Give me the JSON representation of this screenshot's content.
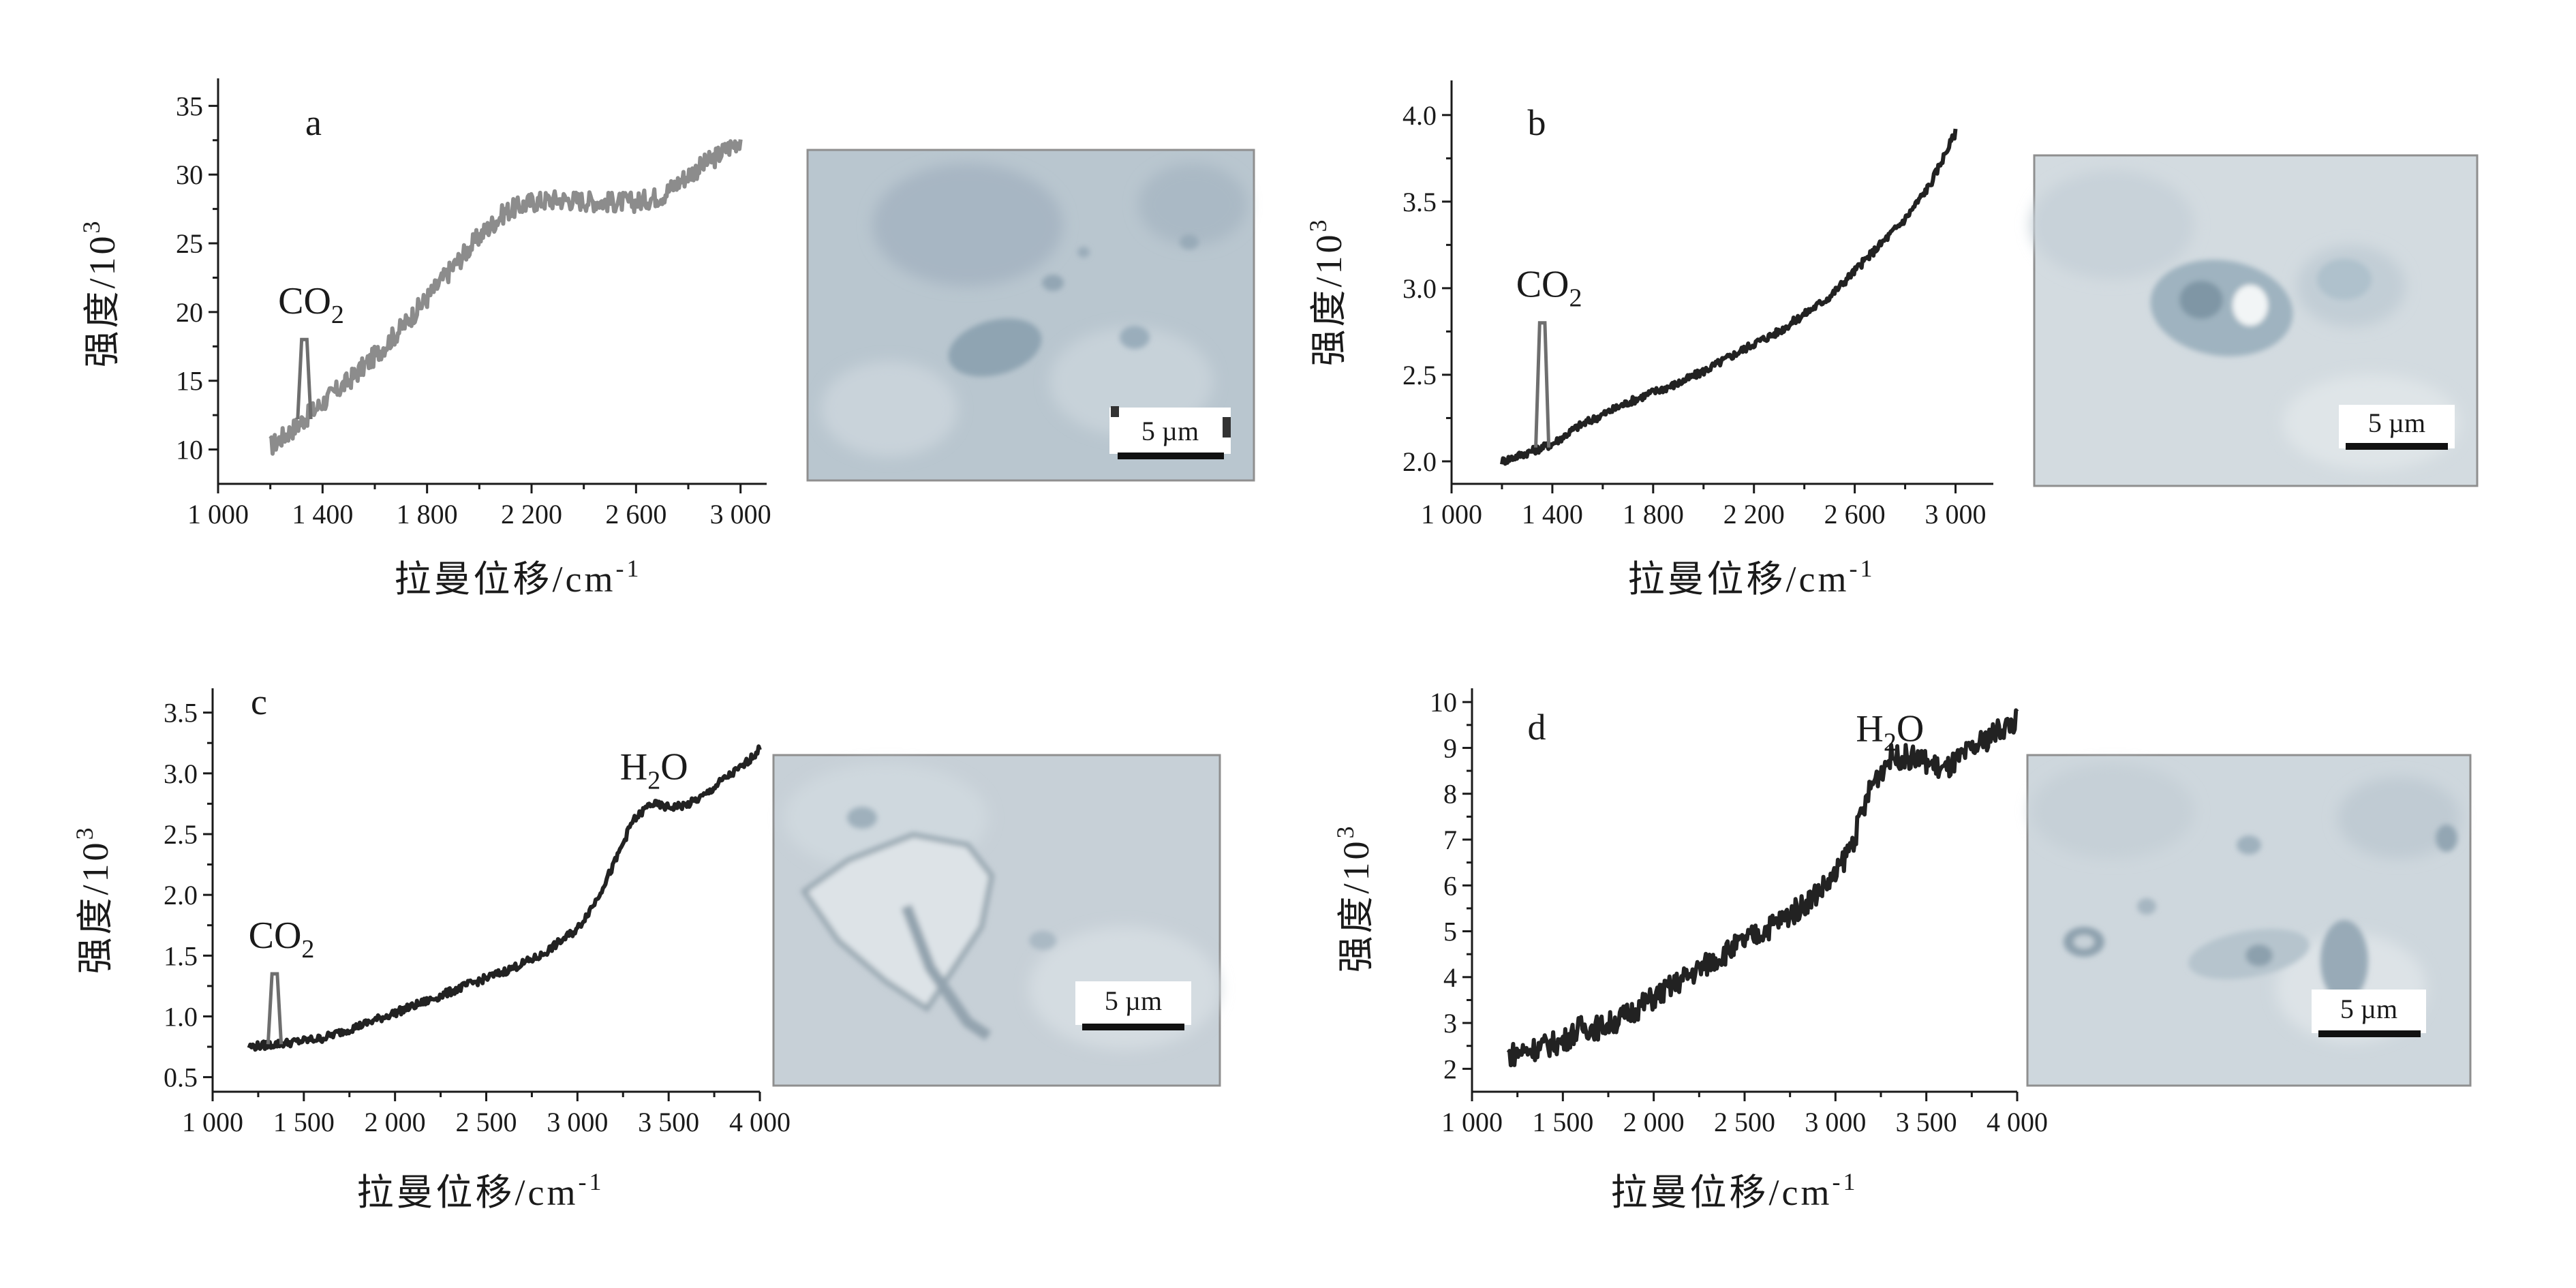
{
  "figure": {
    "panels": [
      "a",
      "b",
      "c",
      "d"
    ],
    "xlabel": "拉曼位移/cm",
    "xlabel_superscript": "-1",
    "ylabel": "强度/10",
    "ylabel_superscript": "3",
    "scale_bar_label": "5 µm"
  },
  "chart_data": [
    {
      "type": "line",
      "panel": "a",
      "xlabel": "拉曼位移/cm-1",
      "ylabel": "强度/10^3",
      "xlim": [
        1000,
        3100
      ],
      "ylim": [
        7.5,
        37
      ],
      "xticks": [
        {
          "value": 1000,
          "label": "1 000"
        },
        {
          "value": 1400,
          "label": "1 400"
        },
        {
          "value": 1800,
          "label": "1 800"
        },
        {
          "value": 2200,
          "label": "2 200"
        },
        {
          "value": 2600,
          "label": "2 600"
        },
        {
          "value": 3000,
          "label": "3 000"
        }
      ],
      "yticks": [
        {
          "value": 10,
          "label": "10"
        },
        {
          "value": 15,
          "label": "15"
        },
        {
          "value": 20,
          "label": "20"
        },
        {
          "value": 25,
          "label": "25"
        },
        {
          "value": 30,
          "label": "30"
        },
        {
          "value": 35,
          "label": "35"
        }
      ],
      "series": [
        {
          "x": [
            1200,
            1300,
            1400,
            1500,
            1600,
            1700,
            1800,
            1900,
            2000,
            2100,
            2200,
            2300,
            2400,
            2500,
            2600,
            2700,
            2800,
            2900,
            3000
          ],
          "y": [
            10.2,
            11.7,
            13.4,
            15.0,
            16.8,
            18.8,
            21.0,
            23.3,
            25.5,
            27.3,
            28.0,
            28.2,
            28.1,
            28.0,
            28.0,
            28.5,
            30.0,
            31.2,
            32.6
          ]
        }
      ],
      "peaks": [
        {
          "x": 1330,
          "y": 18,
          "label": "CO",
          "label_sub": "2"
        }
      ],
      "noise": 0.05,
      "stroke_color": "#8c8c8c"
    },
    {
      "type": "line",
      "panel": "b",
      "xlabel": "拉曼位移/cm-1",
      "ylabel": "强度/10^3",
      "xlim": [
        1000,
        3150
      ],
      "ylim": [
        1.87,
        4.2
      ],
      "xticks": [
        {
          "value": 1000,
          "label": "1 000"
        },
        {
          "value": 1400,
          "label": "1 400"
        },
        {
          "value": 1800,
          "label": "1 800"
        },
        {
          "value": 2200,
          "label": "2 200"
        },
        {
          "value": 2600,
          "label": "2 600"
        },
        {
          "value": 3000,
          "label": "3 000"
        }
      ],
      "yticks": [
        {
          "value": 2.0,
          "label": "2.0"
        },
        {
          "value": 2.5,
          "label": "2.5"
        },
        {
          "value": 3.0,
          "label": "3.0"
        },
        {
          "value": 3.5,
          "label": "3.5"
        },
        {
          "value": 4.0,
          "label": "4.0"
        }
      ],
      "series": [
        {
          "x": [
            1200,
            1300,
            1400,
            1500,
            1600,
            1700,
            1800,
            1900,
            2000,
            2100,
            2200,
            2300,
            2400,
            2500,
            2600,
            2700,
            2800,
            2900,
            3000
          ],
          "y": [
            2.0,
            2.05,
            2.1,
            2.2,
            2.27,
            2.34,
            2.4,
            2.45,
            2.52,
            2.6,
            2.68,
            2.75,
            2.85,
            2.95,
            3.1,
            3.25,
            3.4,
            3.6,
            3.9
          ]
        }
      ],
      "peaks": [
        {
          "x": 1360,
          "y": 2.8,
          "label": "CO",
          "label_sub": "2"
        }
      ],
      "noise": 0.02,
      "stroke_color": "#222222"
    },
    {
      "type": "line",
      "panel": "c",
      "xlabel": "拉曼位移/cm-1",
      "ylabel": "强度/10^3",
      "xlim": [
        1000,
        4000
      ],
      "ylim": [
        0.38,
        3.7
      ],
      "xticks": [
        {
          "value": 1000,
          "label": "1 000"
        },
        {
          "value": 1500,
          "label": "1 500"
        },
        {
          "value": 2000,
          "label": "2 000"
        },
        {
          "value": 2500,
          "label": "2 500"
        },
        {
          "value": 3000,
          "label": "3 000"
        },
        {
          "value": 3500,
          "label": "3 500"
        },
        {
          "value": 4000,
          "label": "4 000"
        }
      ],
      "yticks": [
        {
          "value": 0.5,
          "label": "0.5"
        },
        {
          "value": 1.0,
          "label": "1.0"
        },
        {
          "value": 1.5,
          "label": "1.5"
        },
        {
          "value": 2.0,
          "label": "2.0"
        },
        {
          "value": 2.5,
          "label": "2.5"
        },
        {
          "value": 3.0,
          "label": "3.0"
        },
        {
          "value": 3.5,
          "label": "3.5"
        }
      ],
      "series": [
        {
          "x": [
            1200,
            1400,
            1600,
            1800,
            2000,
            2200,
            2400,
            2600,
            2800,
            3000,
            3100,
            3200,
            3300,
            3400,
            3500,
            3600,
            3700,
            3800,
            3900,
            4000
          ],
          "y": [
            0.75,
            0.78,
            0.82,
            0.92,
            1.03,
            1.14,
            1.26,
            1.37,
            1.5,
            1.72,
            1.95,
            2.25,
            2.6,
            2.75,
            2.72,
            2.74,
            2.82,
            2.95,
            3.05,
            3.2
          ]
        }
      ],
      "peaks": [
        {
          "x": 1340,
          "y": 1.35,
          "label": "CO",
          "label_sub": "2"
        }
      ],
      "labels": [
        {
          "x": 3420,
          "y": 2.95,
          "label": "H",
          "label_sub": "2",
          "label_tail": "O"
        }
      ],
      "noise": 0.02,
      "stroke_color": "#222222"
    },
    {
      "type": "line",
      "panel": "d",
      "xlabel": "拉曼位移/cm-1",
      "ylabel": "强度/10^3",
      "xlim": [
        1000,
        4000
      ],
      "ylim": [
        1.5,
        10.3
      ],
      "xticks": [
        {
          "value": 1000,
          "label": "1 000"
        },
        {
          "value": 1500,
          "label": "1 500"
        },
        {
          "value": 2000,
          "label": "2 000"
        },
        {
          "value": 2500,
          "label": "2 500"
        },
        {
          "value": 3000,
          "label": "3 000"
        },
        {
          "value": 3500,
          "label": "3 500"
        },
        {
          "value": 4000,
          "label": "4 000"
        }
      ],
      "yticks": [
        {
          "value": 2,
          "label": "2"
        },
        {
          "value": 3,
          "label": "3"
        },
        {
          "value": 4,
          "label": "4"
        },
        {
          "value": 5,
          "label": "5"
        },
        {
          "value": 6,
          "label": "6"
        },
        {
          "value": 7,
          "label": "7"
        },
        {
          "value": 8,
          "label": "8"
        },
        {
          "value": 9,
          "label": "9"
        },
        {
          "value": 10,
          "label": "10"
        }
      ],
      "series": [
        {
          "x": [
            1200,
            1400,
            1500,
            1600,
            1700,
            1800,
            2000,
            2200,
            2400,
            2600,
            2800,
            3000,
            3100,
            3200,
            3300,
            3400,
            3500,
            3600,
            3700,
            3800,
            3900,
            4000
          ],
          "y": [
            2.3,
            2.5,
            2.6,
            2.9,
            2.9,
            3.05,
            3.55,
            4.05,
            4.55,
            5.0,
            5.5,
            6.2,
            7.0,
            8.2,
            8.8,
            8.8,
            8.7,
            8.5,
            8.8,
            9.1,
            9.4,
            9.6
          ]
        }
      ],
      "labels": [
        {
          "x": 3300,
          "y": 9.15,
          "label": "H",
          "label_sub": "2",
          "label_tail": "O"
        }
      ],
      "noise": 0.06,
      "stroke_color": "#222222"
    }
  ]
}
